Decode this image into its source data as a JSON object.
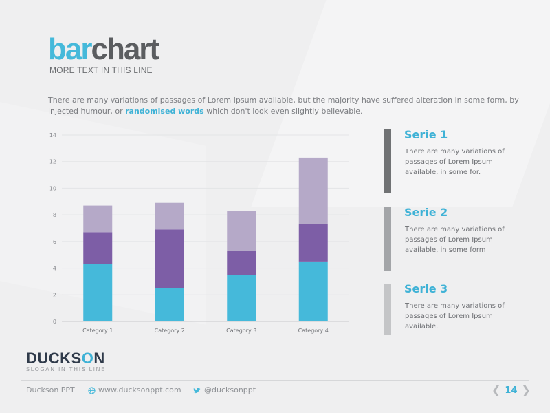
{
  "header": {
    "title_part1": "bar",
    "title_part2": "chart",
    "subtitle": "MORE TEXT IN THIS LINE"
  },
  "intro": {
    "text_before": "There are many variations of passages of Lorem Ipsum available, but the majority have suffered alteration in some form, by injected humour, or ",
    "highlight": "randomised words",
    "text_after": " which don't look even slightly believable."
  },
  "colors": {
    "accent": "#45b9da",
    "serie1": "#45b9da",
    "serie2": "#7d5ea6",
    "serie3": "#b5a9c8",
    "marker1": "#707274",
    "marker2": "#a3a5a8",
    "marker3": "#c4c5c7",
    "text_dark": "#5b5d60"
  },
  "chart_data": {
    "type": "bar",
    "stacked": true,
    "categories": [
      "Category 1",
      "Category 2",
      "Category 3",
      "Category 4"
    ],
    "series": [
      {
        "name": "Serie 1",
        "values": [
          4.3,
          2.5,
          3.5,
          4.5
        ]
      },
      {
        "name": "Serie 2",
        "values": [
          2.4,
          4.4,
          1.8,
          2.8
        ]
      },
      {
        "name": "Serie 3",
        "values": [
          2.0,
          2.0,
          3.0,
          5.0
        ]
      }
    ],
    "yticks": [
      "0",
      "2",
      "4",
      "6",
      "8",
      "10",
      "12",
      "14"
    ],
    "ylim": [
      0,
      14
    ],
    "grid": true
  },
  "legend": [
    {
      "name": "Serie 1",
      "desc": "There are many variations of passages of Lorem Ipsum available, in some for."
    },
    {
      "name": "Serie 2",
      "desc": "There are many variations of passages of Lorem Ipsum available, in some form"
    },
    {
      "name": "Serie 3",
      "desc": "There are many variations of passages of Lorem Ipsum available."
    }
  ],
  "brand": {
    "logo_part1": "DUCKS",
    "logo_part2": "O",
    "logo_part3": "N",
    "slogan": "SLOGAN IN THIS LINE"
  },
  "footer": {
    "company": "Duckson PPT",
    "website": "www.ducksonppt.com",
    "twitter": "@ducksonppt",
    "globe_icon": "globe-icon",
    "twitter_icon": "twitter-bird-icon"
  },
  "pager": {
    "page": "14",
    "prev_icon": "chevron-left-icon",
    "next_icon": "chevron-right-icon"
  }
}
